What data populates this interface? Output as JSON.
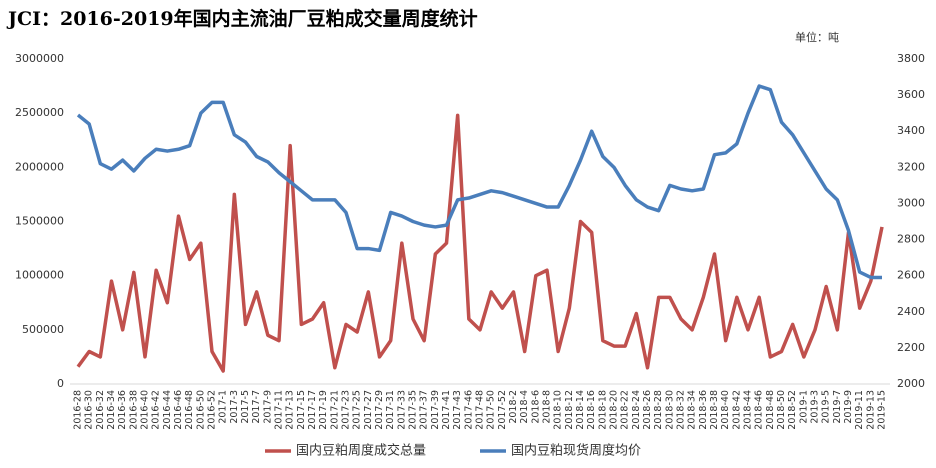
{
  "chart_data": {
    "type": "line",
    "title": "JCI：2016-2019年国内主流油厂豆粕成交量周度统计",
    "unit_note": "单位：吨",
    "categories": [
      "2016-28",
      "2016-30",
      "2016-32",
      "2016-34",
      "2016-36",
      "2016-38",
      "2016-40",
      "2016-42",
      "2016-44",
      "2016-46",
      "2016-48",
      "2016-50",
      "2016-52",
      "2017-1",
      "2017-3",
      "2017-5",
      "2017-7",
      "2017-9",
      "2017-11",
      "2017-13",
      "2017-15",
      "2017-17",
      "2017-19",
      "2017-21",
      "2017-23",
      "2017-25",
      "2017-27",
      "2017-29",
      "2017-31",
      "2017-33",
      "2017-35",
      "2017-37",
      "2017-39",
      "2017-41",
      "2017-43",
      "2017-46",
      "2017-48",
      "2017-50",
      "2017-52",
      "2018-2",
      "2018-4",
      "2018-6",
      "2018-8",
      "2018-10",
      "2018-12",
      "2018-14",
      "2018-16",
      "2018-18",
      "2018-20",
      "2018-22",
      "2018-24",
      "2018-26",
      "2018-28",
      "2018-30",
      "2018-32",
      "2018-34",
      "2018-36",
      "2018-38",
      "2018-40",
      "2018-42",
      "2018-44",
      "2018-46",
      "2018-48",
      "2018-50",
      "2018-52",
      "2019-1",
      "2019-3",
      "2019-5",
      "2019-7",
      "2019-9",
      "2019-11",
      "2019-13",
      "2019-15"
    ],
    "series": [
      {
        "name": "国内豆粕周度成交总量",
        "color": "#c0504d",
        "axis": "y",
        "values": [
          160000,
          300000,
          250000,
          950000,
          500000,
          1030000,
          250000,
          1050000,
          750000,
          1550000,
          1150000,
          1300000,
          300000,
          120000,
          1750000,
          550000,
          850000,
          450000,
          400000,
          2200000,
          550000,
          600000,
          750000,
          150000,
          550000,
          480000,
          850000,
          250000,
          400000,
          1300000,
          600000,
          400000,
          1200000,
          1300000,
          2480000,
          600000,
          500000,
          850000,
          700000,
          850000,
          300000,
          1000000,
          1050000,
          300000,
          700000,
          1500000,
          1400000,
          400000,
          350000,
          350000,
          650000,
          150000,
          800000,
          800000,
          600000,
          500000,
          800000,
          1200000,
          400000,
          800000,
          500000,
          800000,
          250000,
          300000,
          550000,
          250000,
          500000,
          900000,
          500000,
          1400000,
          700000,
          950000,
          1450000
        ]
      },
      {
        "name": "国内豆粕现货周度均价",
        "color": "#4a7ebb",
        "axis": "y2",
        "values": [
          3490,
          3440,
          3220,
          3190,
          3240,
          3180,
          3250,
          3300,
          3290,
          3300,
          3320,
          3500,
          3560,
          3560,
          3380,
          3340,
          3260,
          3230,
          3170,
          3120,
          3070,
          3020,
          3020,
          3020,
          2950,
          2750,
          2750,
          2740,
          2950,
          2930,
          2900,
          2880,
          2870,
          2880,
          3020,
          3030,
          3050,
          3070,
          3060,
          3040,
          3020,
          3000,
          2980,
          2980,
          3100,
          3240,
          3400,
          3260,
          3200,
          3100,
          3020,
          2980,
          2960,
          3100,
          3080,
          3070,
          3080,
          3270,
          3280,
          3330,
          3500,
          3650,
          3630,
          3450,
          3380,
          3280,
          3180,
          3080,
          3020,
          2850,
          2620,
          2590,
          2590
        ]
      }
    ],
    "ylim": [
      0,
      3000000
    ],
    "yticks": [
      0,
      500000,
      1000000,
      1500000,
      2000000,
      2500000,
      3000000
    ],
    "y2lim": [
      2000,
      3800
    ],
    "y2ticks": [
      2000,
      2200,
      2400,
      2600,
      2800,
      3000,
      3200,
      3400,
      3600,
      3800
    ],
    "legend": "bottom"
  }
}
